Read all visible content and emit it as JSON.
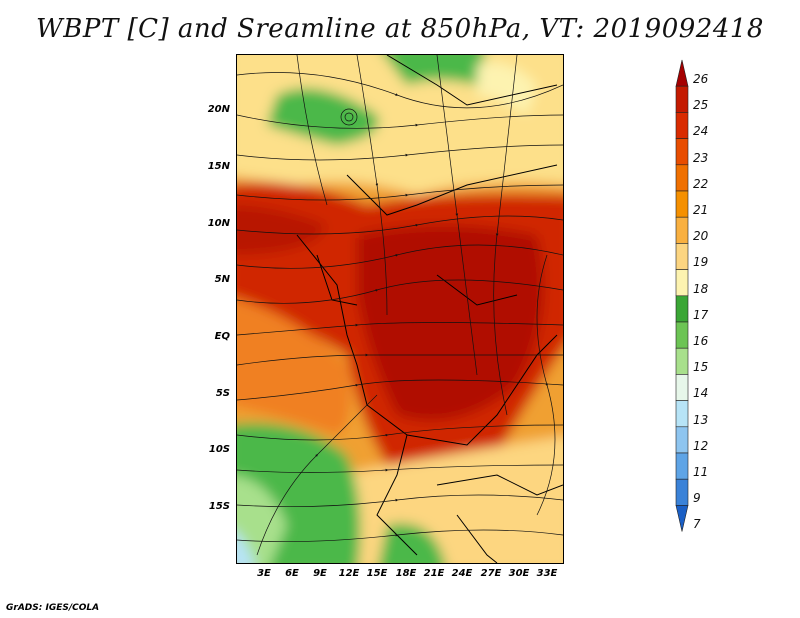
{
  "title": "WBPT [C] and Sreamline at 850hPa, VT: 2019092418",
  "credit": "GrADS: IGES/COLA",
  "map": {
    "lat_labels": [
      "20N",
      "15N",
      "10N",
      "5N",
      "EQ",
      "5S",
      "10S",
      "15S"
    ],
    "lon_labels": [
      "3E",
      "6E",
      "9E",
      "12E",
      "15E",
      "18E",
      "21E",
      "24E",
      "27E",
      "30E",
      "33E"
    ]
  },
  "colorbar": {
    "labels": [
      "26",
      "25",
      "24",
      "23",
      "22",
      "21",
      "20",
      "19",
      "18",
      "17",
      "16",
      "15",
      "14",
      "13",
      "12",
      "11",
      "9",
      "7"
    ],
    "colors": [
      "#a50000",
      "#c41a00",
      "#d92b00",
      "#e84d00",
      "#f07000",
      "#f59000",
      "#f9b040",
      "#fcd581",
      "#fdf3b0",
      "#3aa635",
      "#6cc454",
      "#a8e08c",
      "#e7f7ea",
      "#b7e4f7",
      "#8ec5f0",
      "#5ea4e6",
      "#3a82d8",
      "#1a5fc5"
    ]
  }
}
